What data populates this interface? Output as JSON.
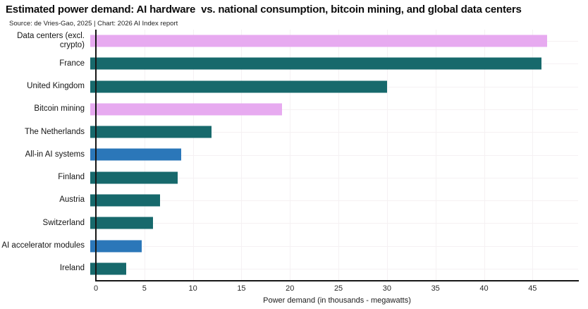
{
  "header": {
    "title": "Estimated power demand: AI hardware  vs. national consumption, bitcoin mining, and global data centers",
    "source_line": "Source: de Vries-Gao, 2025 | Chart: 2026 AI Index report"
  },
  "chart_data": {
    "type": "bar",
    "orientation": "horizontal",
    "title": "Estimated power demand: AI hardware vs. national consumption, bitcoin mining, and global data centers",
    "xlabel": "Power demand (in thousands - megawatts)",
    "ylabel": "",
    "xlim": [
      0,
      49.7
    ],
    "xticks": [
      0,
      5,
      10,
      15,
      20,
      25,
      30,
      35,
      40,
      45
    ],
    "grid": true,
    "legend": false,
    "categories": [
      "Data centers (excl. crypto)",
      "France",
      "United Kingdom",
      "Bitcoin mining",
      "The Netherlands",
      "All-in AI systems",
      "Finland",
      "Austria",
      "Switzerland",
      "AI accelerator modules",
      "Ireland"
    ],
    "values": [
      47.1,
      46.5,
      30.6,
      19.8,
      12.5,
      9.4,
      9.0,
      7.2,
      6.5,
      5.3,
      3.7
    ],
    "color_keys": [
      "datacenter_crypto",
      "country",
      "country",
      "datacenter_crypto",
      "country",
      "ai_hardware",
      "country",
      "country",
      "country",
      "ai_hardware",
      "country"
    ],
    "palette": {
      "country": "#17696c",
      "ai_hardware": "#2b77b9",
      "datacenter_crypto": "#e7aaf0"
    },
    "axis_color": "#161616",
    "grid_color": "#f5f1f3"
  }
}
